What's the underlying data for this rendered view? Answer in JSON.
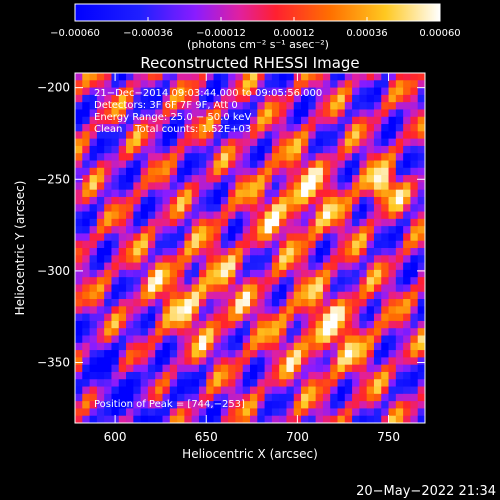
{
  "chart_data": {
    "type": "heatmap",
    "title": "Reconstructed RHESSI Image",
    "xlabel": "Heliocentric X (arcsec)",
    "ylabel": "Heliocentric Y (arcsec)",
    "xlim": [
      578,
      770
    ],
    "ylim": [
      -383,
      -192
    ],
    "x_ticks": [
      600,
      650,
      700,
      750
    ],
    "y_ticks": [
      -200,
      -250,
      -300,
      -350
    ],
    "x_tick_labels": [
      "600",
      "650",
      "700",
      "750"
    ],
    "y_tick_labels": [
      "−200",
      "−250",
      "−300",
      "−350"
    ],
    "colorbar": {
      "min": -0.0006,
      "max": 0.0006,
      "ticks": [
        -0.0006,
        -0.00036,
        -0.00012,
        0.00012,
        0.00036,
        0.0006
      ],
      "tick_labels": [
        "−0.00060",
        "−0.00036",
        "−0.00012",
        "0.00012",
        "0.00036",
        "0.00060"
      ],
      "unit_label": "(photons cm⁻² s⁻¹ asec⁻²)"
    },
    "annotations": [
      "21−Dec−2014 09:03:44.000 to 09:05:56.000",
      "Detectors: 3F 6F 7F 9F, Att 0",
      "Energy Range: 25.0 − 50.0 keV",
      "Clean    Total counts: 1.52E+03"
    ],
    "peak_label": "Position of Peak = [744,−253]",
    "peak_position": [
      744,
      -253
    ]
  },
  "footer": {
    "timestamp": "20−May−2022 21:34"
  }
}
